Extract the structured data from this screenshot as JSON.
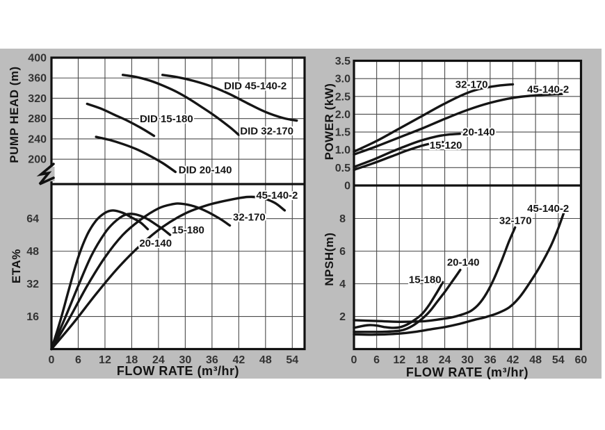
{
  "titles": {
    "pump_head": "PUMP HEAD (m)",
    "eta": "ETA%",
    "power": "POWER (kW)",
    "npsh": "NPSH(m)",
    "flow_left": "FLOW RATE (m³/hr)",
    "flow_right": "FLOW RATE (m³/hr)"
  },
  "colors": {
    "background_gray": "#bdbdbd",
    "plot_bg": "#ffffff",
    "grid": "#4a4a4a",
    "border": "#111111",
    "curve": "#151515",
    "tick_text": "#333333",
    "label_halo": "#ffffff"
  },
  "chart_data": [
    {
      "id": "head",
      "type": "line",
      "title": "Pump head curves",
      "ylabel": "PUMP HEAD (m)",
      "xlabel": "FLOW RATE (m³/hr)",
      "xticks": [
        0,
        6,
        12,
        18,
        24,
        30,
        36,
        42,
        48,
        54
      ],
      "yticks": [
        400,
        360,
        320,
        280,
        240,
        200
      ],
      "ylim": [
        200,
        400
      ],
      "axis_break": true,
      "grid": true,
      "series": [
        {
          "name": "DID 45-140-2",
          "points": [
            [
              24.9,
              366
            ],
            [
              28,
              362
            ],
            [
              32,
              354
            ],
            [
              36,
              343
            ],
            [
              40,
              328
            ],
            [
              44,
              310
            ],
            [
              48,
              293
            ],
            [
              52,
              281
            ],
            [
              55,
              276
            ]
          ],
          "label": {
            "text": "DID 45-140-2",
            "x": 38.7,
            "v": 338,
            "anchor": "start"
          }
        },
        {
          "name": "DID 32-170",
          "points": [
            [
              16,
              366
            ],
            [
              19,
              362
            ],
            [
              22,
              355
            ],
            [
              25,
              345
            ],
            [
              28,
              333
            ],
            [
              31,
              318
            ],
            [
              34,
              301
            ],
            [
              37,
              283
            ],
            [
              40,
              263
            ],
            [
              42,
              248
            ]
          ],
          "label": {
            "text": "DID 32-170",
            "x": 42.3,
            "v": 249,
            "anchor": "start"
          }
        },
        {
          "name": "DID 15-180",
          "points": [
            [
              8,
              309
            ],
            [
              11,
              300
            ],
            [
              14,
              288
            ],
            [
              17,
              276
            ],
            [
              20,
              262
            ],
            [
              23,
              246
            ]
          ],
          "label": {
            "text": "DID 15-180",
            "x": 19.8,
            "v": 273,
            "anchor": "start"
          }
        },
        {
          "name": "DID 20-140",
          "points": [
            [
              10,
              244
            ],
            [
              13,
              238
            ],
            [
              16,
              230
            ],
            [
              19,
              220
            ],
            [
              22,
              207
            ],
            [
              25,
              192
            ],
            [
              27.8,
              175
            ]
          ],
          "label": {
            "text": "DID 20-140",
            "x": 28.5,
            "v": 172,
            "anchor": "start"
          }
        }
      ]
    },
    {
      "id": "eta",
      "type": "line",
      "title": "Efficiency curves",
      "ylabel": "ETA%",
      "xlabel": "FLOW RATE (m³/hr)",
      "xticks": [
        0,
        6,
        12,
        18,
        24,
        30,
        36,
        42,
        48,
        54
      ],
      "yticks": [
        64,
        48,
        32,
        16
      ],
      "ylim": [
        0,
        78
      ],
      "grid": true,
      "series": [
        {
          "name": "45-140-2",
          "points": [
            [
              0,
              0
            ],
            [
              5,
              13
            ],
            [
              10,
              27
            ],
            [
              15,
              40
            ],
            [
              20,
              51
            ],
            [
              25,
              60
            ],
            [
              30,
              66.5
            ],
            [
              35,
              70.6
            ],
            [
              40,
              73.2
            ],
            [
              44,
              74.6
            ],
            [
              47,
              74.2
            ],
            [
              50,
              71.8
            ],
            [
              52.3,
              68
            ]
          ],
          "label": {
            "text": "45-140-2",
            "x": 45.9,
            "v": 73.8,
            "anchor": "start"
          }
        },
        {
          "name": "32-170",
          "points": [
            [
              0,
              0
            ],
            [
              4,
              15
            ],
            [
              8,
              31
            ],
            [
              12,
              45
            ],
            [
              16,
              56
            ],
            [
              20,
              63.5
            ],
            [
              24,
              69
            ],
            [
              27,
              71
            ],
            [
              29,
              71.3
            ],
            [
              32,
              70
            ],
            [
              35,
              67.3
            ],
            [
              38,
              63.6
            ],
            [
              40,
              60.6
            ]
          ],
          "label": {
            "text": "32-170",
            "x": 40.7,
            "v": 63,
            "anchor": "start"
          }
        },
        {
          "name": "15-180",
          "points": [
            [
              0,
              0
            ],
            [
              2,
              14
            ],
            [
              4,
              30
            ],
            [
              6,
              45
            ],
            [
              8,
              56
            ],
            [
              10,
              63
            ],
            [
              12,
              66.8
            ],
            [
              13.8,
              68
            ],
            [
              16,
              66.8
            ],
            [
              18,
              64.5
            ],
            [
              20,
              62
            ],
            [
              21.6,
              58.8
            ]
          ],
          "label": {
            "text": "15-180",
            "x": 27,
            "v": 56.8,
            "anchor": "start"
          }
        },
        {
          "name": "20-140",
          "points": [
            [
              0,
              0
            ],
            [
              3,
              15
            ],
            [
              6,
              31
            ],
            [
              9,
              46
            ],
            [
              12,
              57
            ],
            [
              14,
              62
            ],
            [
              16,
              65.3
            ],
            [
              17.5,
              66.3
            ],
            [
              19.5,
              65.7
            ],
            [
              21.5,
              63.8
            ],
            [
              23.5,
              61
            ],
            [
              25,
              58.8
            ],
            [
              26.6,
              56
            ]
          ],
          "label": {
            "text": "20-140",
            "x": 19.7,
            "v": 50.2,
            "anchor": "start"
          }
        }
      ]
    },
    {
      "id": "power",
      "type": "line",
      "title": "Power curves",
      "ylabel": "POWER (kW)",
      "xlabel": "FLOW RATE (m³/hr)",
      "xticks": [
        0,
        6,
        12,
        18,
        24,
        30,
        36,
        42,
        48,
        54,
        60
      ],
      "yticks": [
        3.5,
        3.0,
        2.5,
        2.0,
        1.5,
        1.0,
        0.5,
        0
      ],
      "ylim": [
        0,
        3.5
      ],
      "grid": true,
      "series": [
        {
          "name": "32-170",
          "points": [
            [
              0,
              0.95
            ],
            [
              6,
              1.25
            ],
            [
              12,
              1.6
            ],
            [
              18,
              1.95
            ],
            [
              24,
              2.3
            ],
            [
              30,
              2.6
            ],
            [
              34,
              2.73
            ],
            [
              38,
              2.8
            ],
            [
              42,
              2.84
            ]
          ],
          "label": {
            "text": "32-170",
            "x": 26.8,
            "v": 2.74,
            "anchor": "start"
          }
        },
        {
          "name": "45-140-2",
          "points": [
            [
              0,
              0.87
            ],
            [
              6,
              1.1
            ],
            [
              12,
              1.35
            ],
            [
              18,
              1.6
            ],
            [
              24,
              1.87
            ],
            [
              30,
              2.12
            ],
            [
              36,
              2.32
            ],
            [
              42,
              2.46
            ],
            [
              48,
              2.53
            ],
            [
              55,
              2.57
            ]
          ],
          "label": {
            "text": "45-140-2",
            "x": 45.8,
            "v": 2.6,
            "anchor": "start"
          }
        },
        {
          "name": "20-140",
          "points": [
            [
              0,
              0.52
            ],
            [
              5,
              0.72
            ],
            [
              10,
              0.95
            ],
            [
              14,
              1.12
            ],
            [
              18,
              1.27
            ],
            [
              22,
              1.38
            ],
            [
              25,
              1.43
            ],
            [
              28,
              1.45
            ]
          ],
          "label": {
            "text": "20-140",
            "x": 28.7,
            "v": 1.4,
            "anchor": "start"
          }
        },
        {
          "name": "15-120",
          "points": [
            [
              0,
              0.44
            ],
            [
              5,
              0.62
            ],
            [
              10,
              0.82
            ],
            [
              14,
              0.98
            ],
            [
              18,
              1.12
            ],
            [
              21,
              1.19
            ],
            [
              23.5,
              1.22
            ]
          ],
          "label": {
            "text": "15-120",
            "x": 20,
            "v": 1.03,
            "anchor": "start"
          }
        }
      ]
    },
    {
      "id": "npsh",
      "type": "line",
      "title": "NPSH curves",
      "ylabel": "NPSH(m)",
      "xlabel": "FLOW RATE (m³/hr)",
      "xticks": [
        0,
        6,
        12,
        18,
        24,
        30,
        36,
        42,
        48,
        54,
        60
      ],
      "yticks": [
        8,
        6,
        4,
        2
      ],
      "ylim": [
        0,
        10
      ],
      "grid": true,
      "series": [
        {
          "name": "45-140-2",
          "points": [
            [
              0,
              0.9
            ],
            [
              4,
              0.88
            ],
            [
              8,
              0.9
            ],
            [
              12,
              0.95
            ],
            [
              16,
              1.05
            ],
            [
              20,
              1.2
            ],
            [
              24,
              1.35
            ],
            [
              28,
              1.55
            ],
            [
              32,
              1.8
            ],
            [
              35,
              1.97
            ],
            [
              38,
              2.2
            ],
            [
              41,
              2.55
            ],
            [
              43.5,
              3.1
            ],
            [
              46,
              3.9
            ],
            [
              49,
              5.0
            ],
            [
              52,
              6.3
            ],
            [
              54,
              7.4
            ],
            [
              55.4,
              8.3
            ]
          ],
          "label": {
            "text": "45-140-2",
            "x": 45.8,
            "v": 8.4,
            "anchor": "start"
          }
        },
        {
          "name": "32-170",
          "points": [
            [
              0,
              1.77
            ],
            [
              6,
              1.72
            ],
            [
              12,
              1.67
            ],
            [
              18,
              1.7
            ],
            [
              22,
              1.8
            ],
            [
              26,
              1.95
            ],
            [
              29,
              2.15
            ],
            [
              31,
              2.35
            ],
            [
              33,
              2.75
            ],
            [
              35,
              3.4
            ],
            [
              37,
              4.3
            ],
            [
              39,
              5.4
            ],
            [
              41,
              6.6
            ],
            [
              42.6,
              7.45
            ]
          ],
          "label": {
            "text": "32-170",
            "x": 38.4,
            "v": 7.65,
            "anchor": "start"
          }
        },
        {
          "name": "20-140",
          "points": [
            [
              0,
              1.05
            ],
            [
              4,
              1.05
            ],
            [
              8,
              1.06
            ],
            [
              12,
              1.12
            ],
            [
              14,
              1.25
            ],
            [
              16,
              1.5
            ],
            [
              18,
              1.85
            ],
            [
              20,
              2.3
            ],
            [
              22,
              2.9
            ],
            [
              24,
              3.5
            ],
            [
              26,
              4.15
            ],
            [
              28.1,
              4.85
            ]
          ],
          "label": {
            "text": "20-140",
            "x": 24.6,
            "v": 5.1,
            "anchor": "start"
          }
        },
        {
          "name": "15-180",
          "points": [
            [
              0,
              1.3
            ],
            [
              2,
              1.4
            ],
            [
              4,
              1.47
            ],
            [
              6,
              1.44
            ],
            [
              8,
              1.35
            ],
            [
              10,
              1.3
            ],
            [
              12,
              1.33
            ],
            [
              14,
              1.5
            ],
            [
              16,
              1.78
            ],
            [
              18,
              2.15
            ],
            [
              20,
              2.75
            ],
            [
              22,
              3.5
            ],
            [
              23.5,
              4.1
            ]
          ],
          "label": {
            "text": "15-180",
            "x": 14.5,
            "v": 4.05,
            "anchor": "start"
          }
        }
      ]
    }
  ]
}
